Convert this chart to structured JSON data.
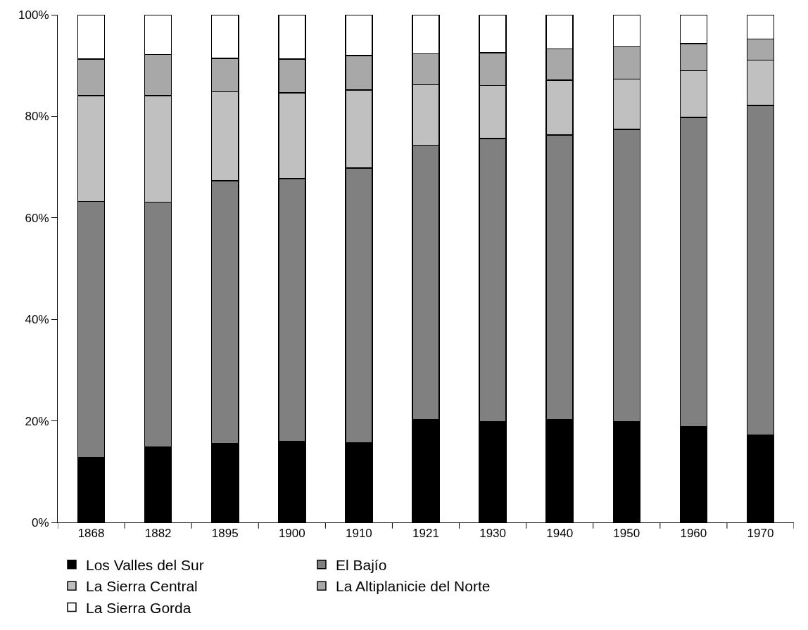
{
  "chart_data": {
    "type": "bar",
    "stacked": true,
    "categories": [
      "1868",
      "1882",
      "1895",
      "1900",
      "1910",
      "1921",
      "1930",
      "1940",
      "1950",
      "1960",
      "1970"
    ],
    "series": [
      {
        "name": "Los Valles del Sur",
        "color": "#000000",
        "values": [
          12.8,
          14.8,
          15.5,
          15.9,
          15.7,
          20.3,
          19.9,
          20.3,
          19.9,
          18.9,
          17.2
        ]
      },
      {
        "name": "El Bajío",
        "color": "#808080",
        "values": [
          50.4,
          48.3,
          51.8,
          51.8,
          54.1,
          54.0,
          55.7,
          56.0,
          57.5,
          60.9,
          64.9
        ]
      },
      {
        "name": "La Sierra Central",
        "color": "#c0c0c0",
        "values": [
          20.9,
          21.0,
          17.5,
          16.9,
          15.4,
          11.9,
          10.5,
          10.8,
          9.9,
          9.2,
          9.0
        ]
      },
      {
        "name": "La Altiplanicie del Norte",
        "color": "#a8a8a8",
        "values": [
          7.2,
          8.1,
          6.6,
          6.7,
          6.8,
          6.1,
          6.4,
          6.2,
          6.4,
          5.3,
          4.1
        ]
      },
      {
        "name": "La Sierra Gorda",
        "color": "#ffffff",
        "values": [
          8.7,
          7.8,
          8.6,
          8.7,
          8.0,
          7.7,
          7.5,
          6.7,
          6.3,
          5.7,
          4.8
        ]
      }
    ],
    "ylim": [
      0,
      100
    ],
    "yticks": [
      {
        "value": 0,
        "label": "0%"
      },
      {
        "value": 20,
        "label": "20%"
      },
      {
        "value": 40,
        "label": "40%"
      },
      {
        "value": 60,
        "label": "60%"
      },
      {
        "value": 80,
        "label": "80%"
      },
      {
        "value": 100,
        "label": "100%"
      }
    ],
    "legend": "bottom"
  }
}
